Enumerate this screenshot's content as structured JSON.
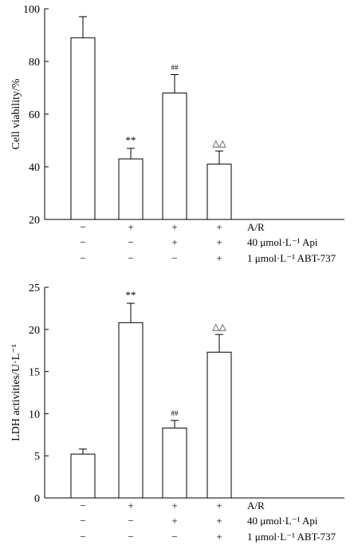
{
  "chart_data": [
    {
      "type": "bar",
      "ylabel": "Cell viability/%",
      "ylim": [
        20,
        100
      ],
      "yticks": [
        20,
        40,
        60,
        80,
        100
      ],
      "values": [
        89,
        43,
        68,
        41
      ],
      "errors": [
        8,
        4,
        7,
        5
      ],
      "annotations": [
        "",
        "**",
        "##",
        "△△"
      ],
      "conditions": [
        {
          "label": "A/R",
          "signs": [
            "−",
            "+",
            "+",
            "+"
          ]
        },
        {
          "label": "40 μmol·L⁻¹ Api",
          "signs": [
            "−",
            "−",
            "+",
            "+"
          ]
        },
        {
          "label": "1 μmol·L⁻¹ ABT-737",
          "signs": [
            "−",
            "−",
            "−",
            "+"
          ]
        }
      ]
    },
    {
      "type": "bar",
      "ylabel": "LDH activities/U·L⁻¹",
      "ylim": [
        0,
        25
      ],
      "yticks": [
        0,
        5,
        10,
        15,
        20,
        25
      ],
      "values": [
        5.2,
        20.8,
        8.3,
        17.3
      ],
      "errors": [
        0.6,
        2.3,
        0.9,
        2.1
      ],
      "annotations": [
        "",
        "**",
        "##",
        "△△"
      ],
      "conditions": [
        {
          "label": "A/R",
          "signs": [
            "−",
            "+",
            "+",
            "+"
          ]
        },
        {
          "label": "40 μmol·L⁻¹ Api",
          "signs": [
            "−",
            "−",
            "+",
            "+"
          ]
        },
        {
          "label": "1 μmol·L⁻¹ ABT-737",
          "signs": [
            "−",
            "−",
            "−",
            "+"
          ]
        }
      ]
    }
  ]
}
